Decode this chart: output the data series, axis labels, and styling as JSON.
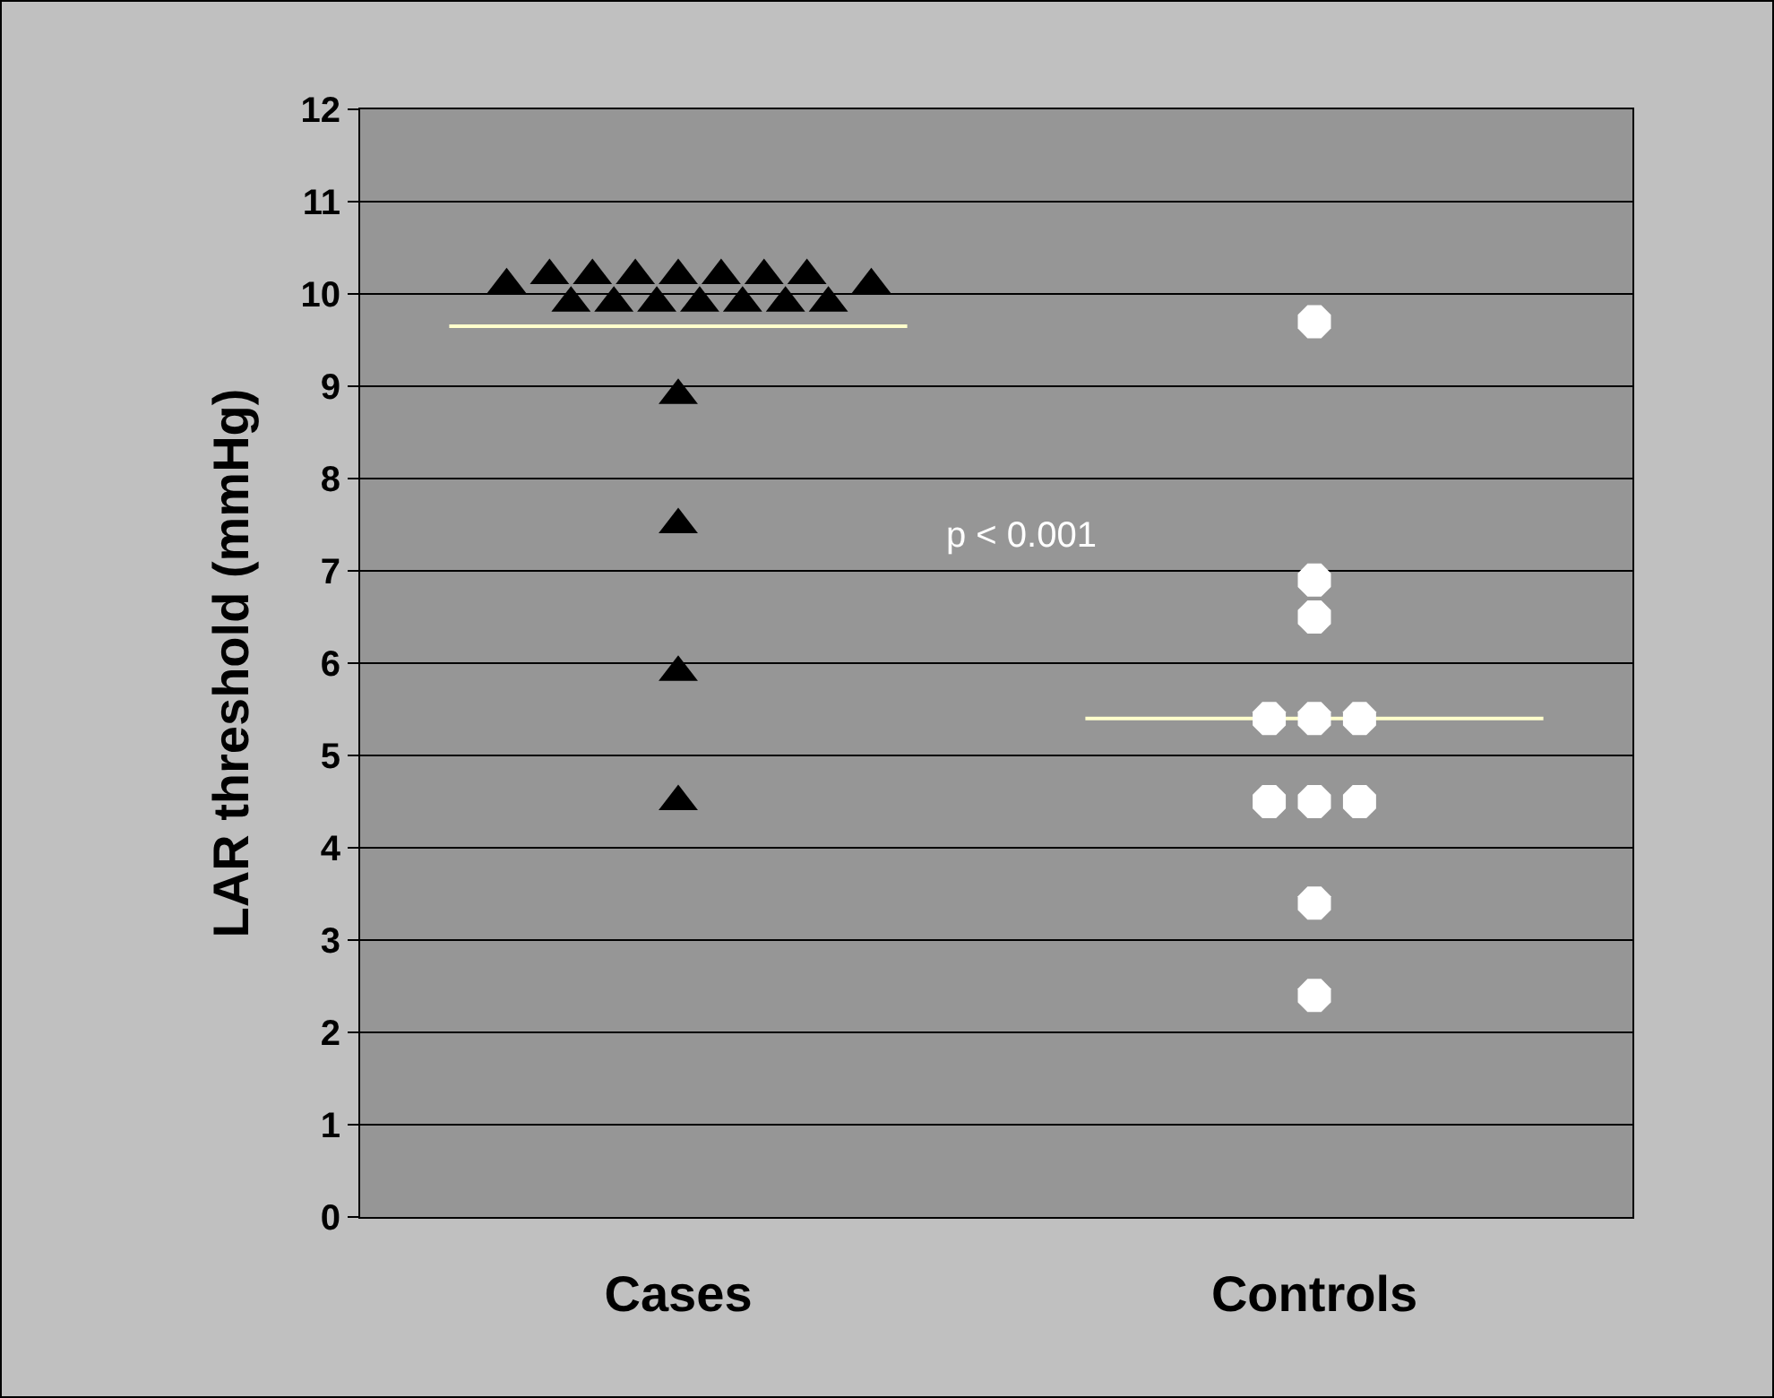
{
  "chart_data": {
    "type": "scatter",
    "ylabel": "LAR threshold (mmHg)",
    "categories": [
      "Cases",
      "Controls"
    ],
    "ylim": [
      0,
      12
    ],
    "yticks": [
      0,
      1,
      2,
      3,
      4,
      5,
      6,
      7,
      8,
      9,
      10,
      11,
      12
    ],
    "grid": "y",
    "annotations": [
      "p < 0.001"
    ],
    "ref_lines": [
      {
        "axis": "y",
        "value": 9.65,
        "color": "#ffffcc"
      },
      {
        "axis": "y",
        "value": 5.4,
        "color": "#ffffcc"
      }
    ],
    "series": [
      {
        "marker": "triangle",
        "color": "#000000",
        "x": [
          "Cases",
          "Cases",
          "Cases",
          "Cases",
          "Cases",
          "Cases",
          "Cases",
          "Cases",
          "Cases",
          "Cases",
          "Cases",
          "Cases",
          "Cases",
          "Cases",
          "Cases",
          "Cases",
          "Cases",
          "Cases",
          "Cases",
          "Cases"
        ],
        "values": [
          10.1,
          10.2,
          10.2,
          10.2,
          10.2,
          10.2,
          10.2,
          10.2,
          9.9,
          9.9,
          9.9,
          9.9,
          9.9,
          9.9,
          9.9,
          10.1,
          8.9,
          7.5,
          5.9,
          4.5
        ]
      },
      {
        "marker": "circle",
        "color": "#ffffff",
        "x": [
          "Controls",
          "Controls",
          "Controls",
          "Controls",
          "Controls",
          "Controls",
          "Controls",
          "Controls",
          "Controls",
          "Controls",
          "Controls"
        ],
        "values": [
          9.7,
          6.9,
          6.5,
          5.4,
          5.4,
          5.4,
          4.5,
          4.5,
          4.5,
          3.4,
          2.4
        ]
      }
    ]
  }
}
